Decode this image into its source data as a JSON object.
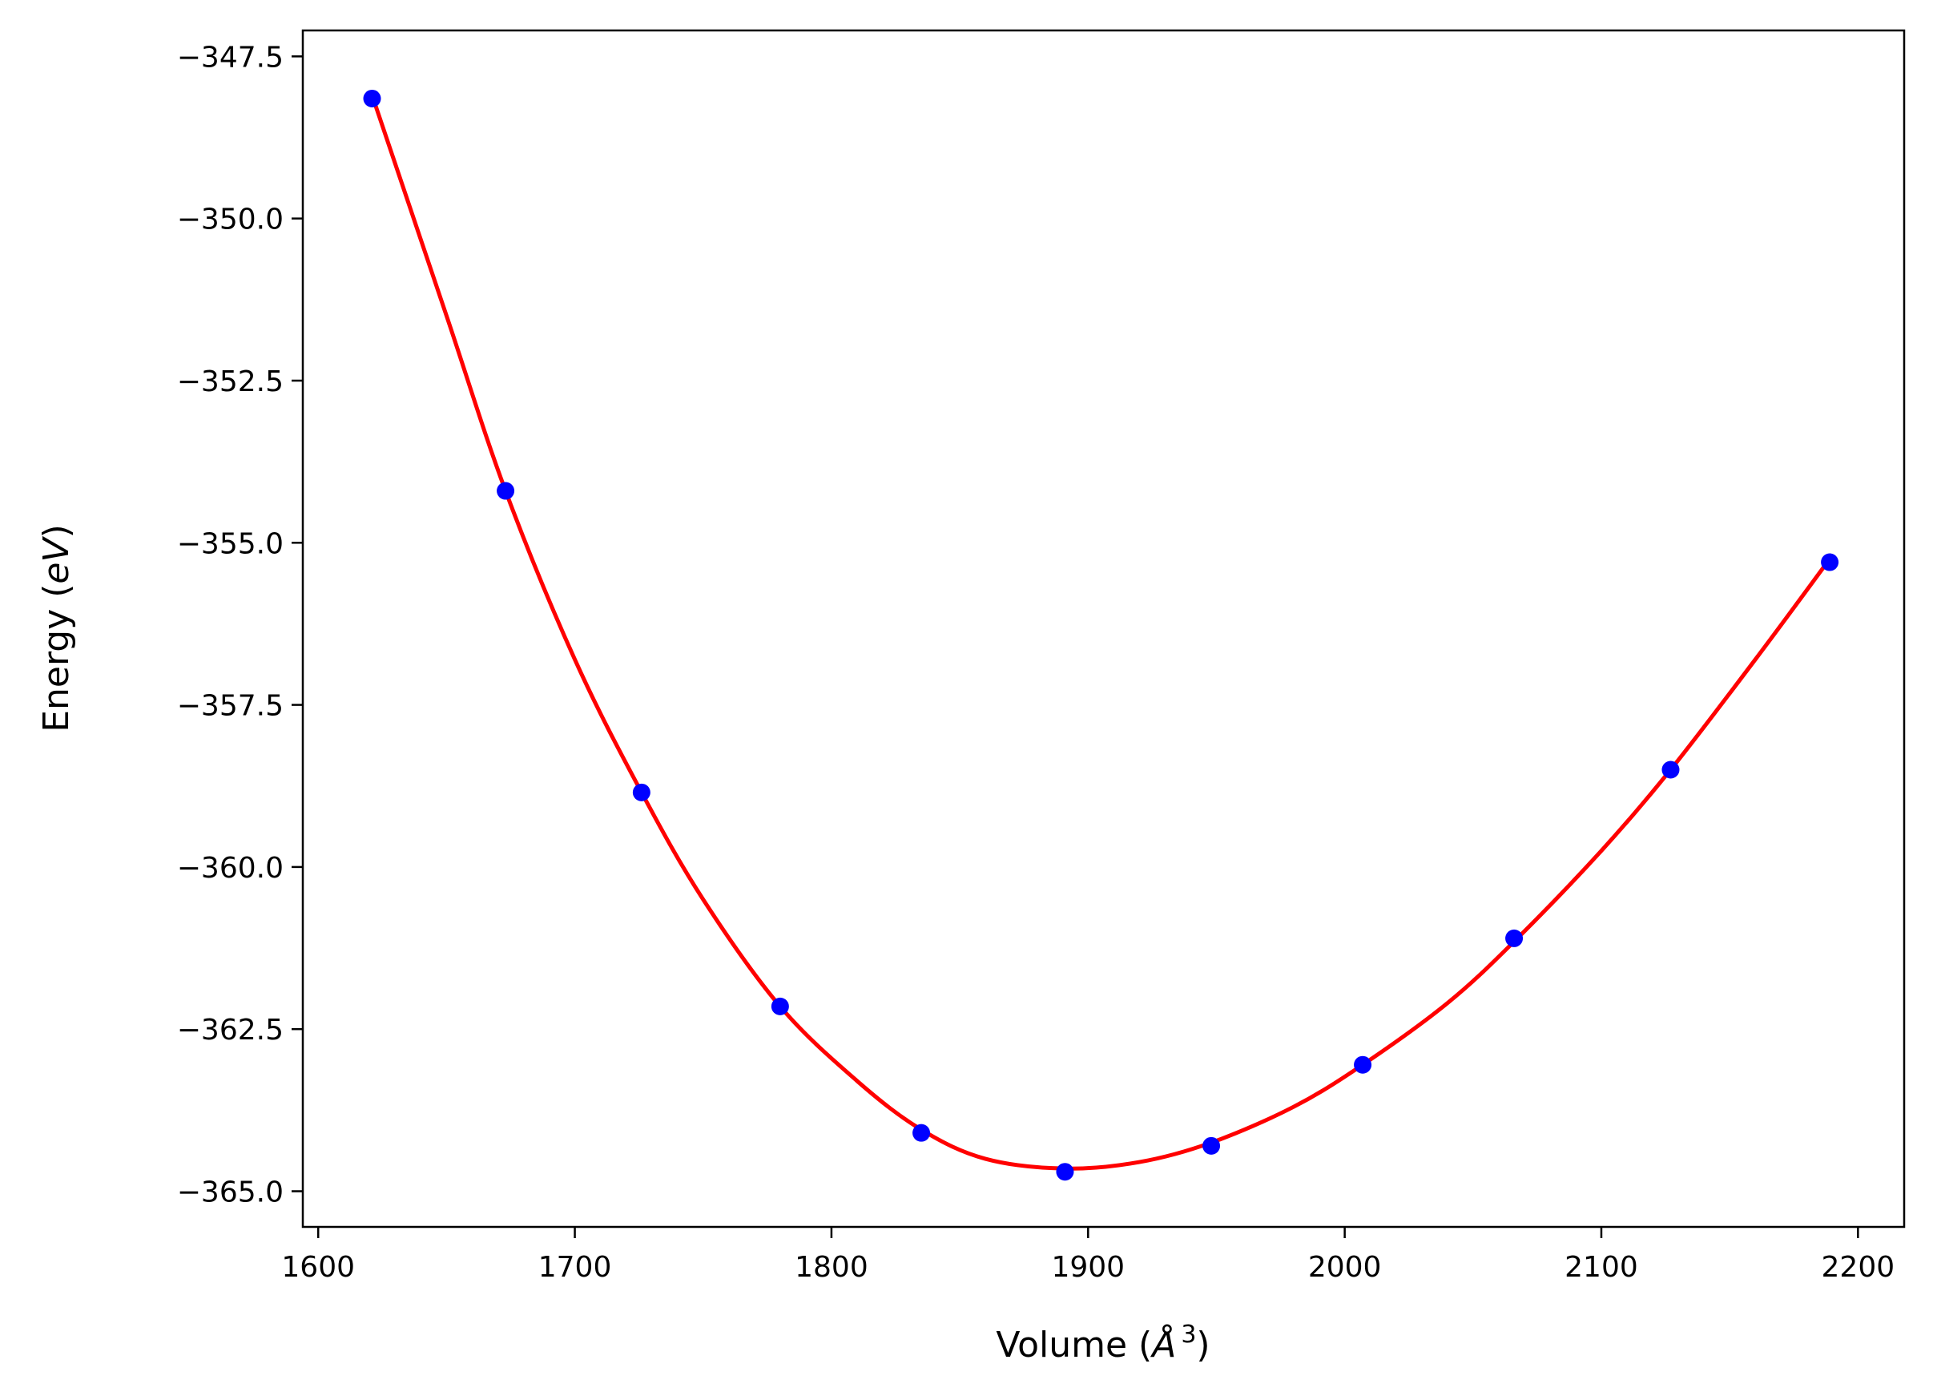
{
  "chart_data": {
    "type": "scatter",
    "xlabel": "Volume (",
    "xlabel_symbol": "Å",
    "xlabel_exponent": "3",
    "xlabel_close": ")",
    "ylabel": "Energy (",
    "ylabel_unit": "eV",
    "ylabel_close": ")",
    "xlim": [
      1594,
      2218
    ],
    "ylim": [
      -365.55,
      -347.1
    ],
    "xticks": [
      1600,
      1700,
      1800,
      1900,
      2000,
      2100,
      2200
    ],
    "xtick_labels": [
      "1600",
      "1700",
      "1800",
      "1900",
      "2000",
      "2100",
      "2200"
    ],
    "yticks": [
      -347.5,
      -350.0,
      -352.5,
      -355.0,
      -357.5,
      -360.0,
      -362.5,
      -365.0
    ],
    "ytick_labels": [
      "−347.5",
      "−350.0",
      "−352.5",
      "−355.0",
      "−357.5",
      "−360.0",
      "−362.5",
      "−365.0"
    ],
    "grid": false,
    "series": [
      {
        "kind": "points",
        "color": "#0000ff",
        "x": [
          1621,
          1673,
          1726,
          1780,
          1835,
          1891,
          1948,
          2007,
          2066,
          2127,
          2189
        ],
        "y": [
          -348.15,
          -354.2,
          -358.85,
          -362.15,
          -364.1,
          -364.7,
          -364.3,
          -363.05,
          -361.1,
          -358.5,
          -355.3
        ]
      },
      {
        "kind": "fit-curve",
        "color": "#ff0000",
        "x": [
          1621,
          1650,
          1673,
          1700,
          1726,
          1750,
          1780,
          1810,
          1835,
          1860,
          1891,
          1920,
          1948,
          1980,
          2007,
          2040,
          2066,
          2100,
          2127,
          2160,
          2189
        ],
        "y": [
          -348.1,
          -351.5,
          -354.2,
          -356.8,
          -358.85,
          -360.5,
          -362.15,
          -363.3,
          -364.05,
          -364.5,
          -364.65,
          -364.55,
          -364.25,
          -363.7,
          -363.05,
          -362.1,
          -361.15,
          -359.75,
          -358.5,
          -356.8,
          -355.25
        ]
      }
    ]
  }
}
